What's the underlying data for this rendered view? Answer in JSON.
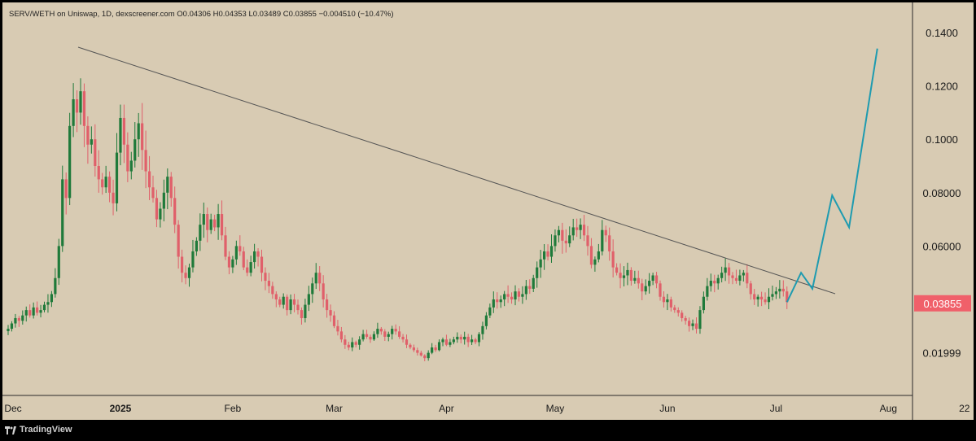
{
  "header": {
    "symbol": "SERV/WETH on Uniswap, 1D, dexscreener.com",
    "ohlc": "O0.04306 H0.04353 L0.03489 C0.03855 −0.004510 (−10.47%)"
  },
  "footer": {
    "brand": "TradingView"
  },
  "chart_data": {
    "type": "candlestick",
    "y_ticks": [
      "0.1400",
      "0.1200",
      "0.1000",
      "0.08000",
      "0.06000",
      "0.01999"
    ],
    "y_tick_values": [
      0.14,
      0.12,
      0.1,
      0.08,
      0.06,
      0.01999
    ],
    "x_ticks": [
      "Dec",
      "2025",
      "Feb",
      "Mar",
      "Apr",
      "May",
      "Jun",
      "Jul",
      "Aug",
      "22"
    ],
    "last_price_label": "0.03855",
    "colors": {
      "up": "#1f7a3a",
      "down": "#e0606a",
      "projection": "#1e9bb0",
      "trendline": "#555555",
      "last_price": "#f0606a"
    },
    "closes_from_2024_12_01": [
      0.029,
      0.031,
      0.033,
      0.032,
      0.034,
      0.036,
      0.034,
      0.037,
      0.035,
      0.036,
      0.038,
      0.039,
      0.042,
      0.048,
      0.06,
      0.085,
      0.078,
      0.105,
      0.115,
      0.11,
      0.118,
      0.105,
      0.098,
      0.1,
      0.09,
      0.085,
      0.082,
      0.086,
      0.08,
      0.076,
      0.095,
      0.108,
      0.098,
      0.088,
      0.092,
      0.1,
      0.106,
      0.096,
      0.088,
      0.082,
      0.078,
      0.07,
      0.074,
      0.08,
      0.086,
      0.078,
      0.068,
      0.056,
      0.05,
      0.048,
      0.052,
      0.058,
      0.062,
      0.068,
      0.072,
      0.066,
      0.07,
      0.067,
      0.072,
      0.064,
      0.056,
      0.052,
      0.055,
      0.06,
      0.058,
      0.052,
      0.05,
      0.054,
      0.058,
      0.056,
      0.05,
      0.047,
      0.045,
      0.042,
      0.04,
      0.038,
      0.041,
      0.036,
      0.04,
      0.038,
      0.036,
      0.033,
      0.038,
      0.042,
      0.046,
      0.05,
      0.046,
      0.04,
      0.036,
      0.034,
      0.03,
      0.028,
      0.025,
      0.023,
      0.022,
      0.024,
      0.023,
      0.025,
      0.027,
      0.026,
      0.025,
      0.027,
      0.029,
      0.028,
      0.026,
      0.027,
      0.029,
      0.028,
      0.026,
      0.025,
      0.023,
      0.022,
      0.021,
      0.02,
      0.019,
      0.018,
      0.02,
      0.022,
      0.021,
      0.024,
      0.025,
      0.023,
      0.024,
      0.025,
      0.026,
      0.025,
      0.026,
      0.024,
      0.025,
      0.024,
      0.027,
      0.03,
      0.034,
      0.037,
      0.04,
      0.039,
      0.04,
      0.042,
      0.041,
      0.04,
      0.043,
      0.041,
      0.042,
      0.045,
      0.044,
      0.048,
      0.052,
      0.055,
      0.058,
      0.056,
      0.06,
      0.064,
      0.066,
      0.062,
      0.061,
      0.064,
      0.067,
      0.066,
      0.068,
      0.064,
      0.06,
      0.053,
      0.055,
      0.058,
      0.066,
      0.064,
      0.058,
      0.052,
      0.05,
      0.048,
      0.049,
      0.051,
      0.047,
      0.048,
      0.046,
      0.043,
      0.045,
      0.047,
      0.049,
      0.046,
      0.041,
      0.039,
      0.04,
      0.037,
      0.036,
      0.035,
      0.033,
      0.032,
      0.03,
      0.031,
      0.029,
      0.036,
      0.041,
      0.045,
      0.047,
      0.046,
      0.048,
      0.05,
      0.052,
      0.049,
      0.048,
      0.047,
      0.049,
      0.05,
      0.046,
      0.042,
      0.04,
      0.041,
      0.04,
      0.039,
      0.041,
      0.042,
      0.043,
      0.044,
      0.043,
      0.039
    ],
    "projection_path": [
      [
        0.039,
        0
      ],
      [
        0.05,
        5
      ],
      [
        0.044,
        9
      ],
      [
        0.079,
        16
      ],
      [
        0.067,
        22
      ],
      [
        0.134,
        32
      ]
    ],
    "trendline_from": [
      0.128,
      0.0
    ],
    "trendline_to": [
      0.04,
      1.0
    ]
  }
}
